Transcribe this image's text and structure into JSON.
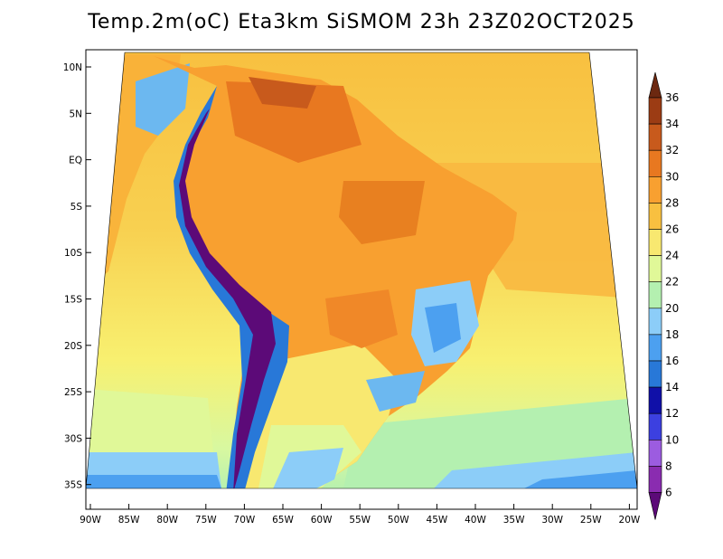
{
  "title": "Temp.2m(oC) Eta3km SiSMOM 23h 23Z02OCT2025",
  "map": {
    "lat_labels": [
      "10N",
      "5N",
      "EQ",
      "5S",
      "10S",
      "15S",
      "20S",
      "25S",
      "30S",
      "35S"
    ],
    "lon_labels": [
      "90W",
      "85W",
      "80W",
      "75W",
      "70W",
      "65W",
      "60W",
      "55W",
      "50W",
      "45W",
      "40W",
      "35W",
      "30W",
      "25W",
      "20W"
    ],
    "lon_range": [
      -90,
      -20
    ],
    "lat_range": [
      -37,
      11
    ]
  },
  "colorbar": {
    "unit": "oC",
    "levels": [
      "6",
      "8",
      "10",
      "12",
      "14",
      "16",
      "18",
      "20",
      "22",
      "24",
      "26",
      "28",
      "30",
      "32",
      "34",
      "36"
    ],
    "colors": [
      "#5c0a78",
      "#8a2cb0",
      "#9c5ce0",
      "#3c40e0",
      "#1010a8",
      "#2878d8",
      "#4ca0f0",
      "#8ccdf8",
      "#b4f0b0",
      "#e0f898",
      "#f8e870",
      "#f8c040",
      "#f8a030",
      "#e87820",
      "#c85a1c",
      "#9c3c14",
      "#6c2810"
    ]
  }
}
